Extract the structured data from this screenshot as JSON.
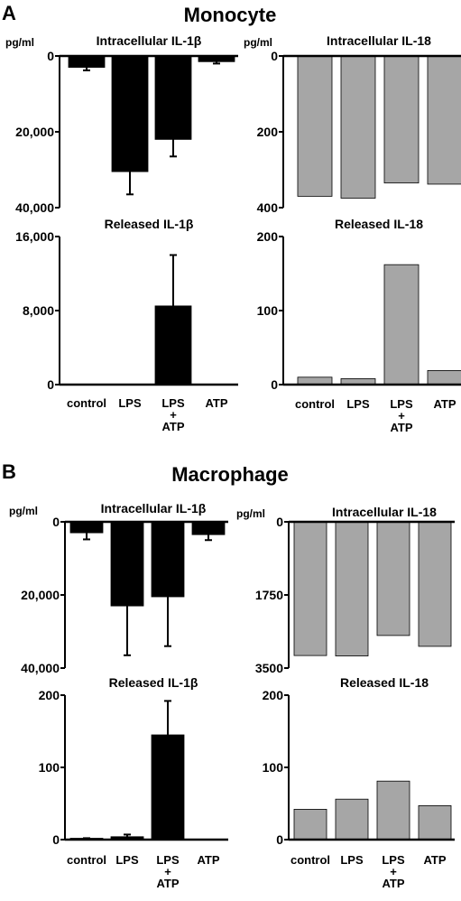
{
  "figure": {
    "panels": [
      {
        "letter": "A",
        "title": "Monocyte"
      },
      {
        "letter": "B",
        "title": "Macrophage"
      }
    ],
    "unit_labels": [
      "pg/ml",
      "pg/ml",
      "pg/ml",
      "pg/ml"
    ],
    "categories": [
      "control",
      "LPS",
      "LPS\n+\nATP",
      "ATP"
    ],
    "colors": {
      "black_bars": "#000000",
      "gray_bars": "#a6a6a6",
      "bar_outline": "#000000"
    }
  },
  "chart_data": [
    {
      "id": "A-intra-1b",
      "type": "bar",
      "title": "Intracellular IL-1β",
      "inverted": true,
      "yticks": [
        "0",
        "20,000",
        "40,000"
      ],
      "ylim": [
        0,
        40000
      ],
      "categories": [
        "control",
        "LPS",
        "LPS + ATP",
        "ATP"
      ],
      "values": [
        3000,
        30500,
        22000,
        1500
      ],
      "errors": [
        800,
        6000,
        4500,
        500
      ],
      "color": "#000000"
    },
    {
      "id": "A-intra-18",
      "type": "bar",
      "title": "Intracellular IL-18",
      "inverted": true,
      "yticks": [
        "0",
        "200",
        "400"
      ],
      "ylim": [
        0,
        400
      ],
      "categories": [
        "control",
        "LPS",
        "LPS + ATP",
        "ATP"
      ],
      "values": [
        370,
        375,
        335,
        338
      ],
      "color": "#a6a6a6"
    },
    {
      "id": "A-rel-1b",
      "type": "bar",
      "title": "Released IL-1β",
      "inverted": false,
      "yticks": [
        "0",
        "8,000",
        "16,000"
      ],
      "ylim": [
        0,
        16000
      ],
      "categories": [
        "control",
        "LPS",
        "LPS + ATP",
        "ATP"
      ],
      "values": [
        0,
        0,
        8500,
        0
      ],
      "errors": [
        0,
        0,
        5500,
        0
      ],
      "color": "#000000"
    },
    {
      "id": "A-rel-18",
      "type": "bar",
      "title": "Released IL-18",
      "inverted": false,
      "yticks": [
        "0",
        "100",
        "200"
      ],
      "ylim": [
        0,
        200
      ],
      "categories": [
        "control",
        "LPS",
        "LPS + ATP",
        "ATP"
      ],
      "values": [
        10,
        8,
        162,
        19
      ],
      "color": "#a6a6a6"
    },
    {
      "id": "B-intra-1b",
      "type": "bar",
      "title": "Intracellular IL-1β",
      "inverted": true,
      "yticks": [
        "0",
        "20,000",
        "40,000"
      ],
      "ylim": [
        0,
        40000
      ],
      "categories": [
        "control",
        "LPS",
        "LPS + ATP",
        "ATP"
      ],
      "values": [
        3000,
        23000,
        20500,
        3500
      ],
      "errors": [
        1800,
        13500,
        13500,
        1500
      ],
      "color": "#000000"
    },
    {
      "id": "B-intra-18",
      "type": "bar",
      "title": "Intracellular IL-18",
      "inverted": true,
      "yticks": [
        "0",
        "1750",
        "3500"
      ],
      "ylim": [
        0,
        3500
      ],
      "categories": [
        "control",
        "LPS",
        "LPS + ATP",
        "ATP"
      ],
      "values": [
        3200,
        3210,
        2720,
        2980
      ],
      "color": "#a6a6a6"
    },
    {
      "id": "B-rel-1b",
      "type": "bar",
      "title": "Released IL-1β",
      "inverted": false,
      "yticks": [
        "0",
        "100",
        "200"
      ],
      "ylim": [
        0,
        200
      ],
      "categories": [
        "control",
        "LPS",
        "LPS + ATP",
        "ATP"
      ],
      "values": [
        1,
        4,
        145,
        0
      ],
      "errors": [
        1,
        3,
        47,
        0
      ],
      "color": "#000000"
    },
    {
      "id": "B-rel-18",
      "type": "bar",
      "title": "Released IL-18",
      "inverted": false,
      "yticks": [
        "0",
        "100",
        "200"
      ],
      "ylim": [
        0,
        200
      ],
      "categories": [
        "control",
        "LPS",
        "LPS + ATP",
        "ATP"
      ],
      "values": [
        42,
        56,
        81,
        47
      ],
      "color": "#a6a6a6"
    }
  ]
}
